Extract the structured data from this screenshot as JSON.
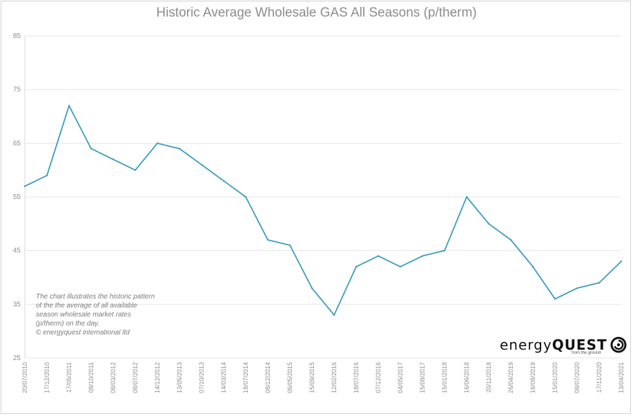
{
  "chart_data": {
    "type": "line",
    "title": "Historic Average Wholesale GAS All Seasons (p/therm)",
    "xlabel": "",
    "ylabel": "",
    "ylim": [
      25,
      85
    ],
    "yticks": [
      25,
      35,
      45,
      55,
      65,
      75,
      85
    ],
    "x_tick_labels": [
      "20/07/2010",
      "17/12/2010",
      "17/05/2011",
      "08/10/2011",
      "08/03/2012",
      "08/07/2012",
      "14/12/2012",
      "13/05/2013",
      "07/10/2013",
      "14/03/2014",
      "18/07/2014",
      "08/12/2014",
      "06/05/2015",
      "15/09/2015",
      "12/02/2016",
      "18/07/2016",
      "07/12/2016",
      "04/05/2017",
      "15/08/2017",
      "15/01/2018",
      "16/06/2018",
      "20/11/2018",
      "26/04/2019",
      "16/08/2019",
      "15/01/2020",
      "08/07/2020",
      "17/11/2020",
      "13/04/2021"
    ],
    "grid": true,
    "series": [
      {
        "color": "#3a9dbd",
        "x": [
          "20/07/2010",
          "17/12/2010",
          "17/05/2011",
          "08/10/2011",
          "08/03/2012",
          "08/07/2012",
          "14/12/2012",
          "13/05/2013",
          "07/10/2013",
          "14/03/2014",
          "18/07/2014",
          "08/12/2014",
          "06/05/2015",
          "15/09/2015",
          "12/02/2016",
          "18/07/2016",
          "07/12/2016",
          "04/05/2017",
          "15/08/2017",
          "15/01/2018",
          "16/06/2018",
          "20/11/2018",
          "26/04/2019",
          "16/08/2019",
          "15/01/2020",
          "08/07/2020",
          "17/11/2020",
          "13/04/2021"
        ],
        "values": [
          57,
          59,
          72,
          64,
          62,
          60,
          65,
          64,
          61,
          58,
          55,
          47,
          46,
          38,
          33,
          42,
          44,
          42,
          44,
          45,
          55,
          50,
          47,
          42,
          36,
          38,
          39,
          43
        ]
      }
    ]
  },
  "note": {
    "lines": [
      "The chart illustrates the historic pattern",
      "of the the average of all available",
      "season wholesale market rates",
      "(p/therm) on the day.",
      "© energyquest international ltd"
    ]
  },
  "logo": {
    "word_light": "energy",
    "word_bold": "QUEST",
    "tagline": "from the ground",
    "icon": "swirl-icon"
  }
}
